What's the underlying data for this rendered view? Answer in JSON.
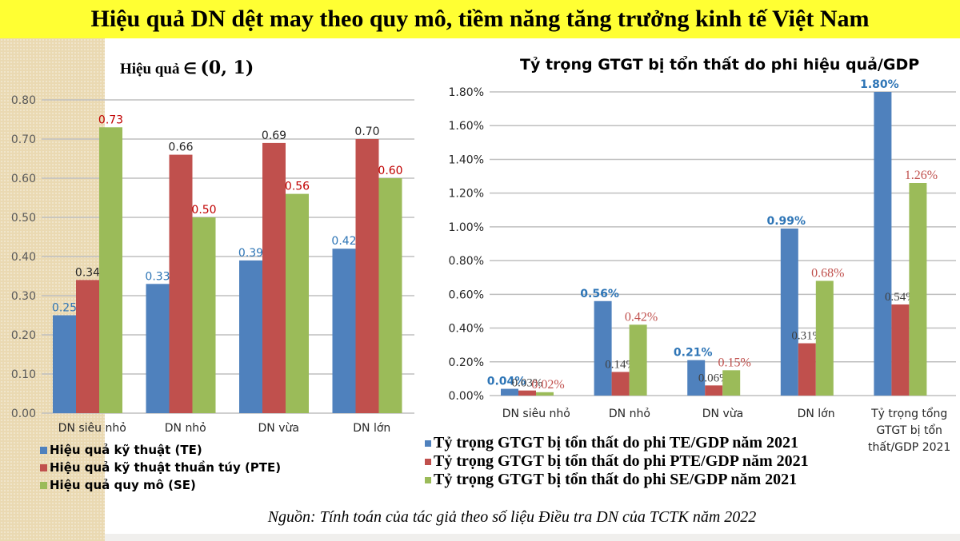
{
  "header": {
    "title": "Hiệu quả DN dệt may theo quy mô, tiềm năng tăng trưởng kinh tế Việt Nam"
  },
  "colors": {
    "te": "#4f81bd",
    "pte": "#c0504d",
    "se": "#9bbb59",
    "title_bg": "#ffff33"
  },
  "left_chart": {
    "subtitle": "Hiệu quả ∈",
    "subtitle_math": "(0, 1)",
    "legend": [
      "Hiệu quả kỹ thuật (TE)",
      "Hiệu quả kỹ thuật thuần túy (PTE)",
      "Hiệu quả quy mô (SE)"
    ]
  },
  "right_chart": {
    "title": "Tỷ trọng GTGT bị tổn thất do phi hiệu quả/GDP",
    "legend": [
      "Tỷ trọng GTGT bị tổn thất do phi TE/GDP năm 2021",
      "Tỷ trọng GTGT bị tổn thất do phi PTE/GDP năm 2021",
      "Tỷ trọng GTGT bị tổn thất do phi SE/GDP năm 2021"
    ]
  },
  "footer": {
    "source": "Nguồn: Tính toán của tác giả theo số liệu Điều tra DN của TCTK năm 2022"
  },
  "chart_data": [
    {
      "type": "bar",
      "title": "Hiệu quả ∈ (0, 1)",
      "categories": [
        "DN siêu nhỏ",
        "DN nhỏ",
        "DN vừa",
        "DN lớn"
      ],
      "series": [
        {
          "name": "Hiệu quả kỹ thuật (TE)",
          "values": [
            0.25,
            0.33,
            0.39,
            0.42
          ]
        },
        {
          "name": "Hiệu quả kỹ thuật thuần túy (PTE)",
          "values": [
            0.34,
            0.66,
            0.69,
            0.7
          ]
        },
        {
          "name": "Hiệu quả quy mô (SE)",
          "values": [
            0.73,
            0.5,
            0.56,
            0.6
          ]
        }
      ],
      "yticks": [
        "0.00",
        "0.10",
        "0.20",
        "0.30",
        "0.40",
        "0.50",
        "0.60",
        "0.70",
        "0.80"
      ],
      "ylim": [
        0,
        0.8
      ],
      "xlabel": "",
      "ylabel": "",
      "grid": true,
      "legend_position": "bottom"
    },
    {
      "type": "bar",
      "title": "Tỷ trọng GTGT bị tổn thất do phi hiệu quả/GDP",
      "categories": [
        "DN siêu nhỏ",
        "DN nhỏ",
        "DN vừa",
        "DN lớn",
        "Tỷ trọng tổng GTGT bị tổn thất/GDP 2021"
      ],
      "series": [
        {
          "name": "Tỷ trọng GTGT bị tổn thất do phi TE/GDP năm 2021",
          "values": [
            0.04,
            0.56,
            0.21,
            0.99,
            1.8
          ],
          "labels": [
            "0.04%",
            "0.56%",
            "0.21%",
            "0.99%",
            "1.80%"
          ]
        },
        {
          "name": "Tỷ trọng GTGT bị tổn thất do phi PTE/GDP năm 2021",
          "values": [
            0.03,
            0.14,
            0.06,
            0.31,
            0.54
          ],
          "labels": [
            "0.03%",
            "0.14%",
            "0.06%",
            "0.31%",
            "0.54%"
          ]
        },
        {
          "name": "Tỷ trọng GTGT bị tổn thất do phi SE/GDP năm 2021",
          "values": [
            0.02,
            0.42,
            0.15,
            0.68,
            1.26
          ],
          "labels": [
            "0.02%",
            "0.42%",
            "0.15%",
            "0.68%",
            "1.26%"
          ]
        }
      ],
      "yticks": [
        "0.00%",
        "0.20%",
        "0.40%",
        "0.60%",
        "0.80%",
        "1.00%",
        "1.20%",
        "1.40%",
        "1.60%",
        "1.80%"
      ],
      "ylim": [
        0,
        1.8
      ],
      "unit": "%",
      "xlabel": "",
      "ylabel": "",
      "grid": true,
      "legend_position": "bottom"
    }
  ]
}
